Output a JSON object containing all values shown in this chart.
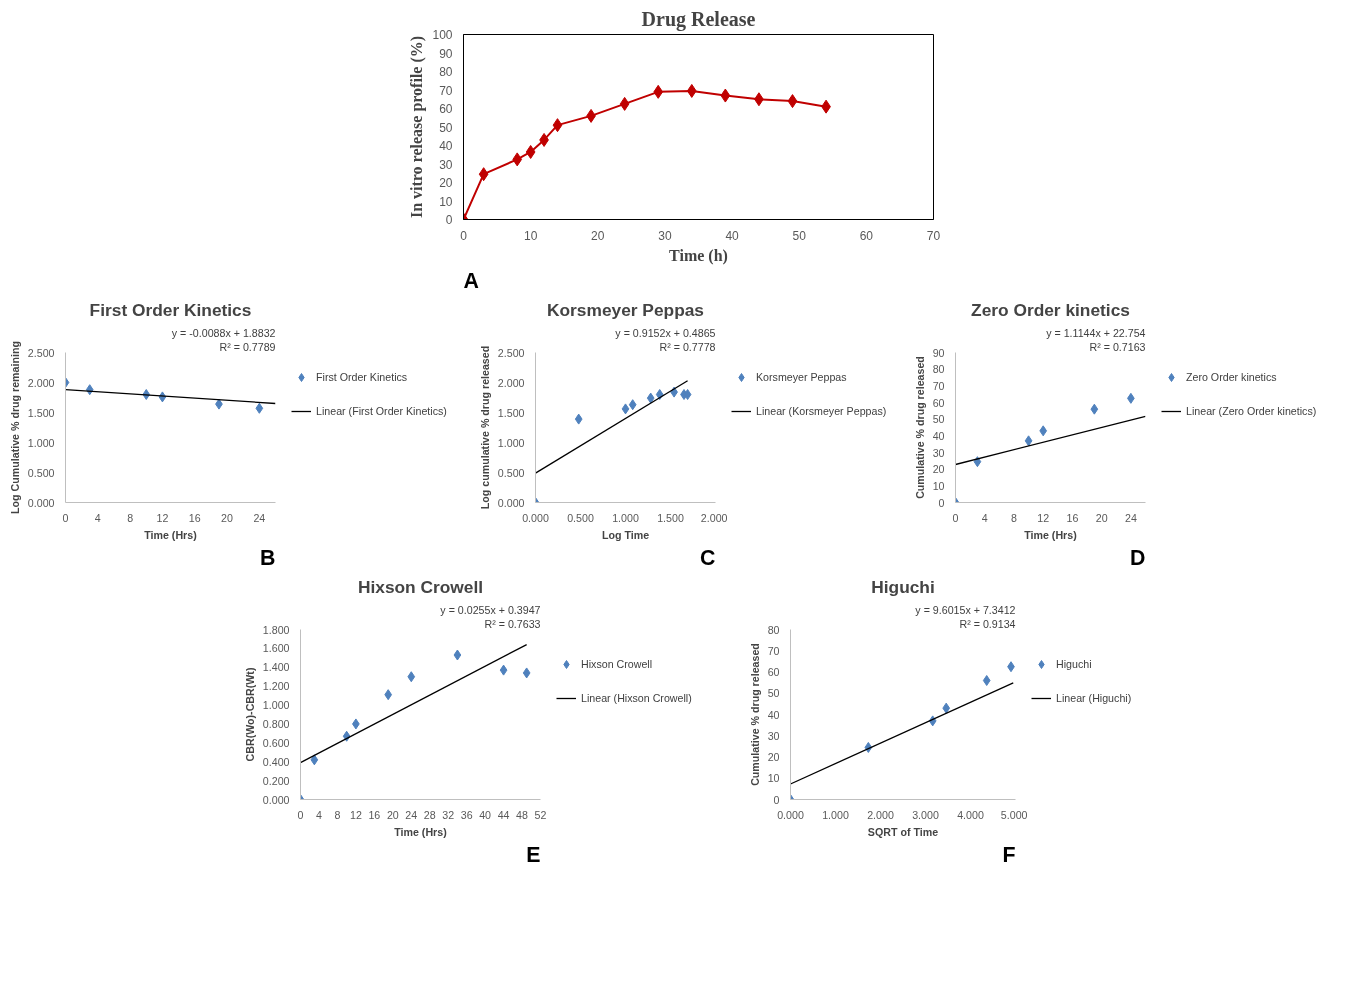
{
  "chart_data": [
    {
      "type": "line",
      "title": "Drug Release",
      "xlabel": "Time (h)",
      "ylabel": "In vitro release profile (%)",
      "marker": "diamond",
      "grid": false,
      "xlim": [
        0,
        70
      ],
      "xticks": [
        0,
        10,
        20,
        30,
        40,
        50,
        60,
        70
      ],
      "ylim": [
        0,
        100
      ],
      "yticks": [
        0,
        10,
        20,
        30,
        40,
        50,
        60,
        70,
        80,
        90,
        100
      ],
      "series": [
        {
          "color": "#c00000",
          "x": [
            0,
            3,
            8,
            10,
            12,
            14,
            19,
            24,
            29,
            34,
            39,
            44,
            49,
            54
          ],
          "values": [
            0,
            24.5,
            32.5,
            36.5,
            43,
            51,
            56,
            62.5,
            69,
            69.5,
            67,
            65,
            64,
            61
          ]
        }
      ],
      "annotations": [
        "A"
      ]
    },
    {
      "type": "scatter",
      "title": "First Order Kinetics",
      "xlabel": "Time (Hrs)",
      "ylabel": "Log Cumulative % drug remaining",
      "grid": false,
      "legend": "right",
      "xlim": [
        0,
        26
      ],
      "xticks": [
        0,
        4,
        8,
        12,
        16,
        20,
        24
      ],
      "ylim": [
        0,
        2.5
      ],
      "yticks": [
        {
          "value": 0,
          "label": "0.000"
        },
        {
          "value": 0.5,
          "label": "0.500"
        },
        {
          "value": 1,
          "label": "1.000"
        },
        {
          "value": 1.5,
          "label": "1.500"
        },
        {
          "value": 2,
          "label": "2.000"
        },
        {
          "value": 2.5,
          "label": "2.500"
        }
      ],
      "series": [
        {
          "name": "First Order Kinetics",
          "color": "#4f81bd",
          "marker": "diamond",
          "x": [
            0,
            3,
            10,
            12,
            19,
            24
          ],
          "values": [
            2.0,
            1.88,
            1.8,
            1.76,
            1.64,
            1.57
          ]
        },
        {
          "name": "Linear (First Order Kinetics)",
          "type": "line",
          "color": "#000000",
          "x": [
            0,
            26
          ],
          "values": [
            1.88,
            1.65
          ]
        }
      ],
      "annotations": [
        "y = -0.0088x + 1.8832",
        "R² = 0.7789",
        "B"
      ]
    },
    {
      "type": "scatter",
      "title": "Korsmeyer Peppas",
      "xlabel": "Log Time",
      "ylabel": "Log cumulative % drug released",
      "grid": false,
      "legend": "right",
      "xlim": [
        0,
        2
      ],
      "xticks": [
        {
          "value": 0,
          "label": "0.000"
        },
        {
          "value": 0.5,
          "label": "0.500"
        },
        {
          "value": 1,
          "label": "1.000"
        },
        {
          "value": 1.5,
          "label": "1.500"
        },
        {
          "value": 2,
          "label": "2.000"
        }
      ],
      "ylim": [
        0,
        2.5
      ],
      "yticks": [
        {
          "value": 0,
          "label": "0.000"
        },
        {
          "value": 0.5,
          "label": "0.500"
        },
        {
          "value": 1,
          "label": "1.000"
        },
        {
          "value": 1.5,
          "label": "1.500"
        },
        {
          "value": 2,
          "label": "2.000"
        },
        {
          "value": 2.5,
          "label": "2.500"
        }
      ],
      "series": [
        {
          "name": "Korsmeyer Peppas",
          "color": "#4f81bd",
          "marker": "diamond",
          "x": [
            0,
            0.48,
            1.0,
            1.08,
            1.28,
            1.38,
            1.54,
            1.65,
            1.69
          ],
          "values": [
            0,
            1.39,
            1.56,
            1.63,
            1.74,
            1.8,
            1.84,
            1.8,
            1.8
          ]
        },
        {
          "name": "Linear (Korsmeyer Peppas)",
          "type": "line",
          "color": "#000000",
          "x": [
            0,
            1.69
          ],
          "values": [
            0.49,
            2.03
          ]
        }
      ],
      "annotations": [
        "y = 0.9152x + 0.4865",
        "R² = 0.7778",
        "C"
      ]
    },
    {
      "type": "scatter",
      "title": "Zero Order kinetics",
      "xlabel": "Time (Hrs)",
      "ylabel": "Cumulative % drug released",
      "grid": false,
      "legend": "right",
      "xlim": [
        0,
        26
      ],
      "xticks": [
        0,
        4,
        8,
        12,
        16,
        20,
        24
      ],
      "ylim": [
        0,
        90
      ],
      "yticks": [
        0,
        10,
        20,
        30,
        40,
        50,
        60,
        70,
        80,
        90
      ],
      "series": [
        {
          "name": "Zero Order kinetics",
          "color": "#4f81bd",
          "marker": "diamond",
          "x": [
            0,
            3,
            10,
            12,
            19,
            24
          ],
          "values": [
            0,
            24.5,
            37,
            43,
            56,
            62.5
          ]
        },
        {
          "name": "Linear (Zero Order kinetics)",
          "type": "line",
          "color": "#000000",
          "x": [
            0,
            26
          ],
          "values": [
            22.8,
            51.7
          ]
        }
      ],
      "annotations": [
        "y = 1.1144x + 22.754",
        "R² = 0.7163",
        "D"
      ]
    },
    {
      "type": "scatter",
      "title": "Hixson Crowell",
      "xlabel": "Time (Hrs)",
      "ylabel": "CBR(Wo)-CBR(Wt)",
      "grid": false,
      "legend": "right",
      "xlim": [
        0,
        52
      ],
      "xticks": [
        0,
        4,
        8,
        12,
        16,
        20,
        24,
        28,
        32,
        36,
        40,
        44,
        48,
        52
      ],
      "ylim": [
        0,
        1.8
      ],
      "yticks": [
        {
          "value": 0,
          "label": "0.000"
        },
        {
          "value": 0.2,
          "label": "0.200"
        },
        {
          "value": 0.4,
          "label": "0.400"
        },
        {
          "value": 0.6,
          "label": "0.600"
        },
        {
          "value": 0.8,
          "label": "0.800"
        },
        {
          "value": 1,
          "label": "1.000"
        },
        {
          "value": 1.2,
          "label": "1.200"
        },
        {
          "value": 1.4,
          "label": "1.400"
        },
        {
          "value": 1.6,
          "label": "1.600"
        },
        {
          "value": 1.8,
          "label": "1.800"
        }
      ],
      "series": [
        {
          "name": "Hixson Crowell",
          "color": "#4f81bd",
          "marker": "diamond",
          "x": [
            0,
            3,
            10,
            12,
            19,
            24,
            34,
            44,
            49
          ],
          "values": [
            0,
            0.42,
            0.67,
            0.8,
            1.11,
            1.3,
            1.53,
            1.37,
            1.34
          ]
        },
        {
          "name": "Linear (Hixson Crowell)",
          "type": "line",
          "color": "#000000",
          "x": [
            0,
            49
          ],
          "values": [
            0.39,
            1.64
          ]
        }
      ],
      "annotations": [
        "y = 0.0255x + 0.3947",
        "R² = 0.7633",
        "E"
      ]
    },
    {
      "type": "scatter",
      "title": "Higuchi",
      "xlabel": "SQRT of Time",
      "ylabel": "Cumulative % drug released",
      "grid": false,
      "legend": "right",
      "xlim": [
        0,
        5
      ],
      "xticks": [
        {
          "value": 0,
          "label": "0.000"
        },
        {
          "value": 1,
          "label": "1.000"
        },
        {
          "value": 2,
          "label": "2.000"
        },
        {
          "value": 3,
          "label": "3.000"
        },
        {
          "value": 4,
          "label": "4.000"
        },
        {
          "value": 5,
          "label": "5.000"
        }
      ],
      "ylim": [
        0,
        80
      ],
      "yticks": [
        0,
        10,
        20,
        30,
        40,
        50,
        60,
        70,
        80
      ],
      "series": [
        {
          "name": "Higuchi",
          "color": "#4f81bd",
          "marker": "diamond",
          "x": [
            0,
            1.73,
            3.16,
            3.46,
            4.36,
            4.9
          ],
          "values": [
            0,
            24.5,
            37,
            43,
            56,
            62.5
          ]
        },
        {
          "name": "Linear (Higuchi)",
          "type": "line",
          "color": "#000000",
          "x": [
            0,
            4.95
          ],
          "values": [
            7.3,
            54.9
          ]
        }
      ],
      "annotations": [
        "y = 9.6015x + 7.3412",
        "R² = 0.9134",
        "F"
      ]
    }
  ]
}
